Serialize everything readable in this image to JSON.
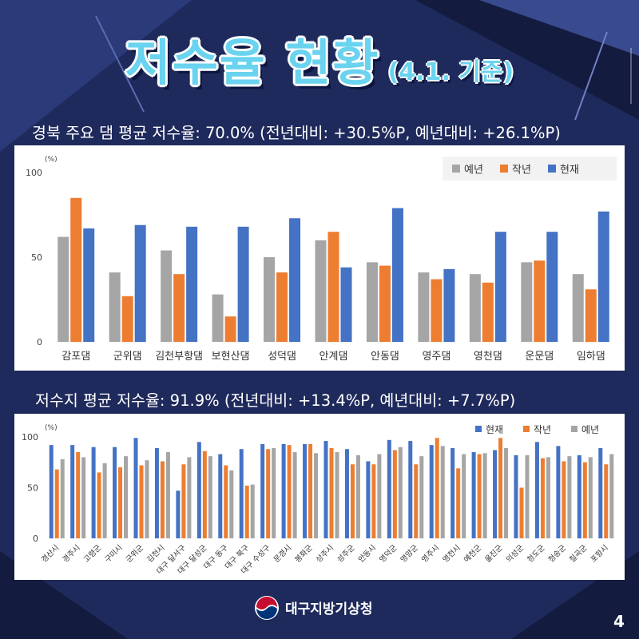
{
  "page": {
    "title": "저수율 현황",
    "title_suffix": "(4.1. 기준)",
    "agency": "대구지방기상청",
    "page_number": "4"
  },
  "dams": {
    "caption": "경북 주요 댐 평균 저수율: 70.0% (전년대비: +30.5%P, 예년대비: +26.1%P)"
  },
  "reservoirs": {
    "caption": "저수지 평균 저수율: 91.9% (전년대비: +13.4%P, 예년대비: +7.7%P)"
  },
  "colors": {
    "background": "#1f2a5c",
    "normal": "#a5a5a5",
    "last_year": "#ed7d31",
    "current": "#4472c4",
    "title": "#6ad3ef"
  },
  "chart_data": [
    {
      "type": "bar",
      "unit_label": "(%)",
      "ylim": [
        0,
        100
      ],
      "yticks": [
        0,
        50,
        100
      ],
      "grid": false,
      "legend_position": "top-right",
      "categories": [
        "감포댐",
        "군위댐",
        "김천부항댐",
        "보현산댐",
        "성덕댐",
        "안계댐",
        "안동댐",
        "영주댐",
        "영천댐",
        "운문댐",
        "임하댐"
      ],
      "series": [
        {
          "name": "예년",
          "color": "#a5a5a5",
          "values": [
            62,
            41,
            54,
            28,
            50,
            60,
            47,
            41,
            40,
            47,
            40
          ]
        },
        {
          "name": "작년",
          "color": "#ed7d31",
          "values": [
            85,
            27,
            40,
            15,
            41,
            65,
            45,
            37,
            35,
            48,
            31
          ]
        },
        {
          "name": "현재",
          "color": "#4472c4",
          "values": [
            67,
            69,
            68,
            68,
            73,
            44,
            79,
            43,
            65,
            65,
            77
          ]
        }
      ]
    },
    {
      "type": "bar",
      "unit_label": "(%)",
      "ylim": [
        0,
        100
      ],
      "yticks": [
        0,
        50,
        100
      ],
      "grid": false,
      "legend_position": "top-right",
      "categories": [
        "경산시",
        "경주시",
        "고령군",
        "구미시",
        "군위군",
        "김천시",
        "대구 달서구",
        "대구 달성군",
        "대구 동구",
        "대구 북구",
        "대구 수성구",
        "문경시",
        "봉화군",
        "상주시",
        "성주군",
        "안동시",
        "영덕군",
        "영양군",
        "영주시",
        "영천시",
        "예천군",
        "울진군",
        "의성군",
        "청도군",
        "청송군",
        "칠곡군",
        "포항시"
      ],
      "series": [
        {
          "name": "현재",
          "color": "#4472c4",
          "values": [
            92,
            92,
            90,
            90,
            99,
            89,
            47,
            95,
            83,
            88,
            93,
            93,
            93,
            96,
            88,
            76,
            97,
            96,
            92,
            89,
            85,
            87,
            82,
            95,
            91,
            82,
            89
          ]
        },
        {
          "name": "작년",
          "color": "#ed7d31",
          "values": [
            68,
            85,
            65,
            70,
            72,
            76,
            73,
            86,
            72,
            52,
            88,
            92,
            93,
            89,
            73,
            73,
            87,
            73,
            99,
            69,
            83,
            99,
            50,
            79,
            76,
            75,
            73
          ]
        },
        {
          "name": "예년",
          "color": "#a5a5a5",
          "values": [
            78,
            80,
            74,
            81,
            77,
            85,
            80,
            81,
            67,
            53,
            89,
            85,
            84,
            85,
            82,
            83,
            90,
            81,
            91,
            83,
            84,
            89,
            82,
            80,
            81,
            80,
            83
          ]
        }
      ]
    }
  ]
}
